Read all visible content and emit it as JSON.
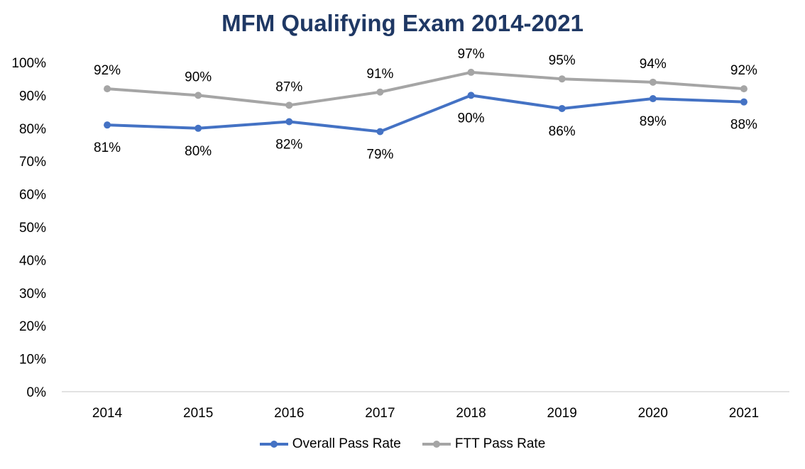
{
  "chart_data": {
    "type": "line",
    "title": "MFM Qualifying Exam 2014-2021",
    "categories": [
      "2014",
      "2015",
      "2016",
      "2017",
      "2018",
      "2019",
      "2020",
      "2021"
    ],
    "ylim": [
      0,
      100
    ],
    "yticks": [
      0,
      10,
      20,
      30,
      40,
      50,
      60,
      70,
      80,
      90,
      100
    ],
    "ytick_labels": [
      "0%",
      "10%",
      "20%",
      "30%",
      "40%",
      "50%",
      "60%",
      "70%",
      "80%",
      "90%",
      "100%"
    ],
    "grid": false,
    "legend_position": "bottom",
    "series": [
      {
        "name": "Overall Pass Rate",
        "color": "#4472C4",
        "values": [
          81,
          80,
          82,
          79,
          90,
          86,
          89,
          88
        ],
        "labels": [
          "81%",
          "80%",
          "82%",
          "79%",
          "90%",
          "86%",
          "89%",
          "88%"
        ],
        "label_position": "below"
      },
      {
        "name": "FTT Pass Rate",
        "color": "#A5A5A5",
        "values": [
          92,
          90,
          87,
          91,
          97,
          95,
          94,
          92
        ],
        "labels": [
          "92%",
          "90%",
          "87%",
          "91%",
          "97%",
          "95%",
          "94%",
          "92%"
        ],
        "label_position": "above"
      }
    ],
    "title_color": "#1F3864",
    "axis_color": "#D9D9D9"
  }
}
